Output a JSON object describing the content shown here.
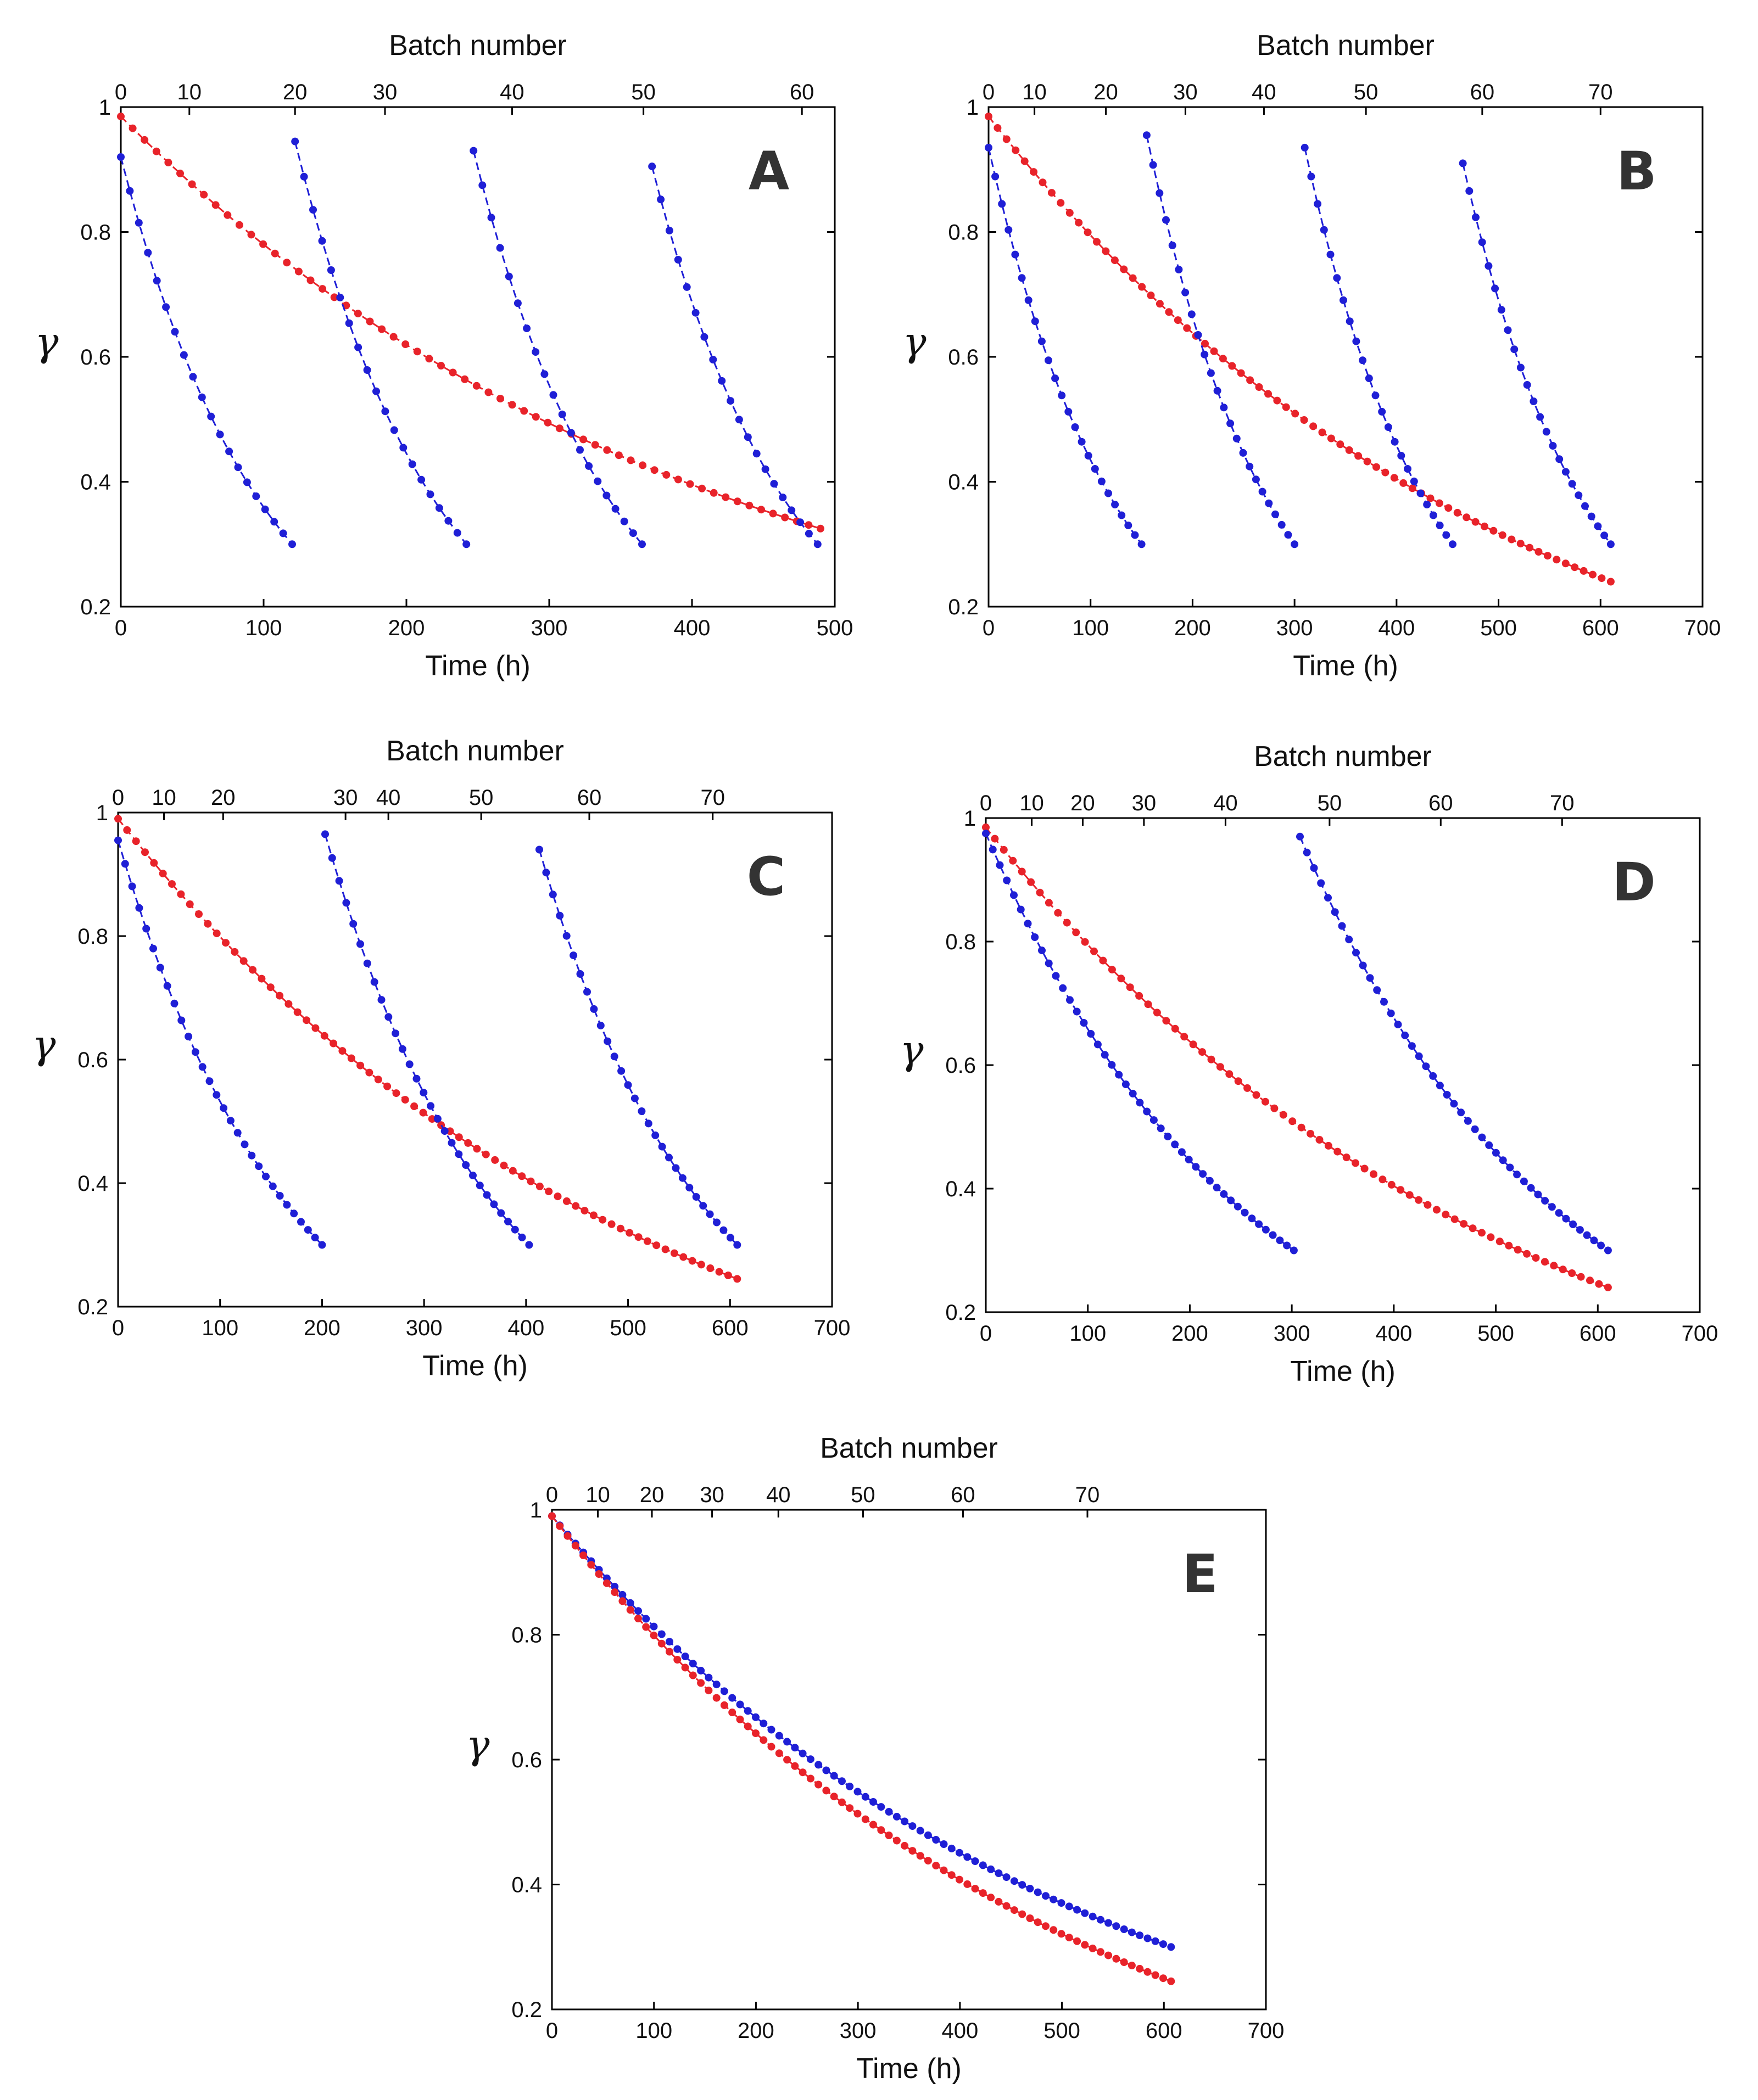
{
  "figure_panels": [
    "A",
    "B",
    "C",
    "D",
    "E"
  ],
  "colors": {
    "red_series": "#e8232a",
    "blue_series": "#1f1fd6"
  },
  "chart_data": [
    {
      "type": "line",
      "panel_label": "A",
      "title": "",
      "xlabel": "Time (h)",
      "ylabel": "γ",
      "top_xlabel": "Batch number",
      "xlim": [
        0,
        500
      ],
      "ylim": [
        0.2,
        1
      ],
      "x_ticks": [
        "0",
        "100",
        "200",
        "300",
        "400",
        "500"
      ],
      "y_ticks": [
        "0.2",
        "0.4",
        "0.6",
        "0.8",
        "1"
      ],
      "top_ticks": [
        {
          "label": "0",
          "x": 0
        },
        {
          "label": "10",
          "x": 48
        },
        {
          "label": "20",
          "x": 122
        },
        {
          "label": "30",
          "x": 185
        },
        {
          "label": "40",
          "x": 274
        },
        {
          "label": "50",
          "x": 366
        },
        {
          "label": "60",
          "x": 477
        }
      ],
      "series": [
        {
          "name": "red",
          "color": "#e8232a",
          "curves": [
            {
              "x0": 0,
              "x1": 490,
              "y0": 0.985,
              "y1": 0.325,
              "points": 60
            }
          ]
        },
        {
          "name": "blue",
          "color": "#1f1fd6",
          "curves": [
            {
              "x0": 0,
              "x1": 120,
              "y0": 0.92,
              "y1": 0.3,
              "points": 20
            },
            {
              "x0": 122,
              "x1": 242,
              "y0": 0.945,
              "y1": 0.3,
              "points": 20
            },
            {
              "x0": 247,
              "x1": 365,
              "y0": 0.93,
              "y1": 0.3,
              "points": 20
            },
            {
              "x0": 372,
              "x1": 488,
              "y0": 0.905,
              "y1": 0.3,
              "points": 20
            }
          ]
        }
      ]
    },
    {
      "type": "line",
      "panel_label": "B",
      "title": "",
      "xlabel": "Time (h)",
      "ylabel": "γ",
      "top_xlabel": "Batch number",
      "xlim": [
        0,
        700
      ],
      "ylim": [
        0.2,
        1
      ],
      "x_ticks": [
        "0",
        "100",
        "200",
        "300",
        "400",
        "500",
        "600",
        "700"
      ],
      "y_ticks": [
        "0.2",
        "0.4",
        "0.6",
        "0.8",
        "1"
      ],
      "top_ticks": [
        {
          "label": "0",
          "x": 0
        },
        {
          "label": "10",
          "x": 45
        },
        {
          "label": "20",
          "x": 115
        },
        {
          "label": "30",
          "x": 193
        },
        {
          "label": "40",
          "x": 270
        },
        {
          "label": "50",
          "x": 370
        },
        {
          "label": "60",
          "x": 484
        },
        {
          "label": "70",
          "x": 600
        }
      ],
      "series": [
        {
          "name": "red",
          "color": "#e8232a",
          "curves": [
            {
              "x0": 0,
              "x1": 610,
              "y0": 0.985,
              "y1": 0.24,
              "points": 70
            }
          ]
        },
        {
          "name": "blue",
          "color": "#1f1fd6",
          "curves": [
            {
              "x0": 0,
              "x1": 150,
              "y0": 0.935,
              "y1": 0.3,
              "points": 24
            },
            {
              "x0": 155,
              "x1": 300,
              "y0": 0.955,
              "y1": 0.3,
              "points": 24
            },
            {
              "x0": 310,
              "x1": 455,
              "y0": 0.935,
              "y1": 0.3,
              "points": 24
            },
            {
              "x0": 465,
              "x1": 610,
              "y0": 0.91,
              "y1": 0.3,
              "points": 24
            }
          ]
        }
      ]
    },
    {
      "type": "line",
      "panel_label": "C",
      "title": "",
      "xlabel": "Time (h)",
      "ylabel": "γ",
      "top_xlabel": "Batch number",
      "xlim": [
        0,
        700
      ],
      "ylim": [
        0.2,
        1
      ],
      "x_ticks": [
        "0",
        "100",
        "200",
        "300",
        "400",
        "500",
        "600",
        "700"
      ],
      "y_ticks": [
        "0.2",
        "0.4",
        "0.6",
        "0.8",
        "1"
      ],
      "top_ticks": [
        {
          "label": "0",
          "x": 0
        },
        {
          "label": "10",
          "x": 45
        },
        {
          "label": "20",
          "x": 103
        },
        {
          "label": "30",
          "x": 223
        },
        {
          "label": "40",
          "x": 265
        },
        {
          "label": "50",
          "x": 356
        },
        {
          "label": "60",
          "x": 462
        },
        {
          "label": "70",
          "x": 583
        }
      ],
      "series": [
        {
          "name": "red",
          "color": "#e8232a",
          "curves": [
            {
              "x0": 0,
              "x1": 607,
              "y0": 0.99,
              "y1": 0.245,
              "points": 70
            }
          ]
        },
        {
          "name": "blue",
          "color": "#1f1fd6",
          "curves": [
            {
              "x0": 0,
              "x1": 200,
              "y0": 0.955,
              "y1": 0.3,
              "points": 30
            },
            {
              "x0": 203,
              "x1": 403,
              "y0": 0.965,
              "y1": 0.3,
              "points": 30
            },
            {
              "x0": 413,
              "x1": 607,
              "y0": 0.94,
              "y1": 0.3,
              "points": 30
            }
          ]
        }
      ]
    },
    {
      "type": "line",
      "panel_label": "D",
      "title": "",
      "xlabel": "Time (h)",
      "ylabel": "γ",
      "top_xlabel": "Batch number",
      "xlim": [
        0,
        700
      ],
      "ylim": [
        0.2,
        1
      ],
      "x_ticks": [
        "0",
        "100",
        "200",
        "300",
        "400",
        "500",
        "600",
        "700"
      ],
      "y_ticks": [
        "0.2",
        "0.4",
        "0.6",
        "0.8",
        "1"
      ],
      "top_ticks": [
        {
          "label": "0",
          "x": 0
        },
        {
          "label": "10",
          "x": 45
        },
        {
          "label": "20",
          "x": 95
        },
        {
          "label": "30",
          "x": 155
        },
        {
          "label": "40",
          "x": 235
        },
        {
          "label": "50",
          "x": 337
        },
        {
          "label": "60",
          "x": 446
        },
        {
          "label": "70",
          "x": 565
        }
      ],
      "series": [
        {
          "name": "red",
          "color": "#e8232a",
          "curves": [
            {
              "x0": 0,
              "x1": 610,
              "y0": 0.985,
              "y1": 0.24,
              "points": 70
            }
          ]
        },
        {
          "name": "blue",
          "color": "#1f1fd6",
          "curves": [
            {
              "x0": 0,
              "x1": 302,
              "y0": 0.975,
              "y1": 0.3,
              "points": 45
            },
            {
              "x0": 308,
              "x1": 610,
              "y0": 0.97,
              "y1": 0.3,
              "points": 45
            }
          ]
        }
      ]
    },
    {
      "type": "line",
      "panel_label": "E",
      "title": "",
      "xlabel": "Time (h)",
      "ylabel": "γ",
      "top_xlabel": "Batch number",
      "xlim": [
        0,
        700
      ],
      "ylim": [
        0.2,
        1
      ],
      "x_ticks": [
        "0",
        "100",
        "200",
        "300",
        "400",
        "500",
        "600",
        "700"
      ],
      "y_ticks": [
        "0.2",
        "0.4",
        "0.6",
        "0.8",
        "1"
      ],
      "top_ticks": [
        {
          "label": "0",
          "x": 0
        },
        {
          "label": "10",
          "x": 45
        },
        {
          "label": "20",
          "x": 98
        },
        {
          "label": "30",
          "x": 157
        },
        {
          "label": "40",
          "x": 222
        },
        {
          "label": "50",
          "x": 305
        },
        {
          "label": "60",
          "x": 403
        },
        {
          "label": "70",
          "x": 525
        }
      ],
      "series": [
        {
          "name": "blue",
          "color": "#1f1fd6",
          "curves": [
            {
              "x0": 0,
              "x1": 607,
              "y0": 0.99,
              "y1": 0.3,
              "points": 80
            }
          ]
        },
        {
          "name": "red",
          "color": "#e8232a",
          "curves": [
            {
              "x0": 0,
              "x1": 607,
              "y0": 0.99,
              "y1": 0.245,
              "points": 80
            }
          ]
        }
      ]
    }
  ]
}
